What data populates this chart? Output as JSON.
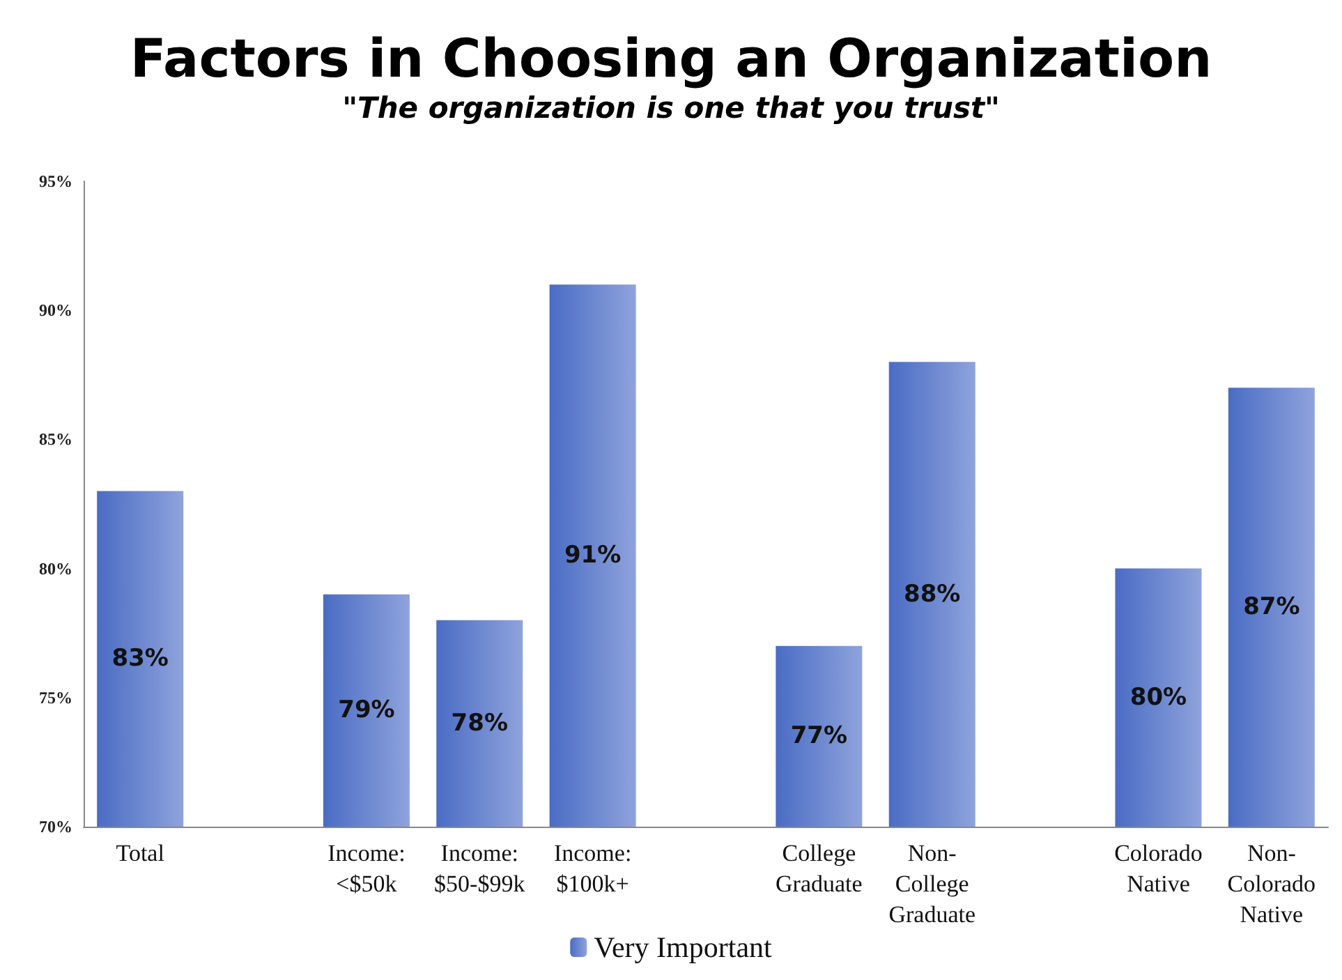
{
  "chart_data": {
    "type": "bar",
    "title": "Factors in Choosing an Organization",
    "subtitle": "\"The organization is one that you trust\"",
    "categories": [
      "Total",
      null,
      "Income:\n<$50k",
      "Income:\n$50-$99k",
      "Income:\n$100k+",
      null,
      "College\nGraduate",
      "Non-\nCollege\nGraduate",
      null,
      "Colorado\nNative",
      "Non-\nColorado\nNative"
    ],
    "series": [
      {
        "name": "Very Important",
        "color": "#4a6cc4",
        "values": [
          83,
          null,
          79,
          78,
          91,
          null,
          77,
          88,
          null,
          80,
          87
        ],
        "value_labels": [
          "83%",
          null,
          "79%",
          "78%",
          "91%",
          null,
          "77%",
          "88%",
          null,
          "80%",
          "87%"
        ]
      }
    ],
    "ylim": [
      70,
      95
    ],
    "yticks": [
      {
        "value": 70,
        "label": "70%"
      },
      {
        "value": 75,
        "label": "75%"
      },
      {
        "value": 80,
        "label": "80%"
      },
      {
        "value": 85,
        "label": "85%"
      },
      {
        "value": 90,
        "label": "90%"
      },
      {
        "value": 95,
        "label": "95%"
      }
    ],
    "grid": false,
    "legend": "bottom"
  }
}
